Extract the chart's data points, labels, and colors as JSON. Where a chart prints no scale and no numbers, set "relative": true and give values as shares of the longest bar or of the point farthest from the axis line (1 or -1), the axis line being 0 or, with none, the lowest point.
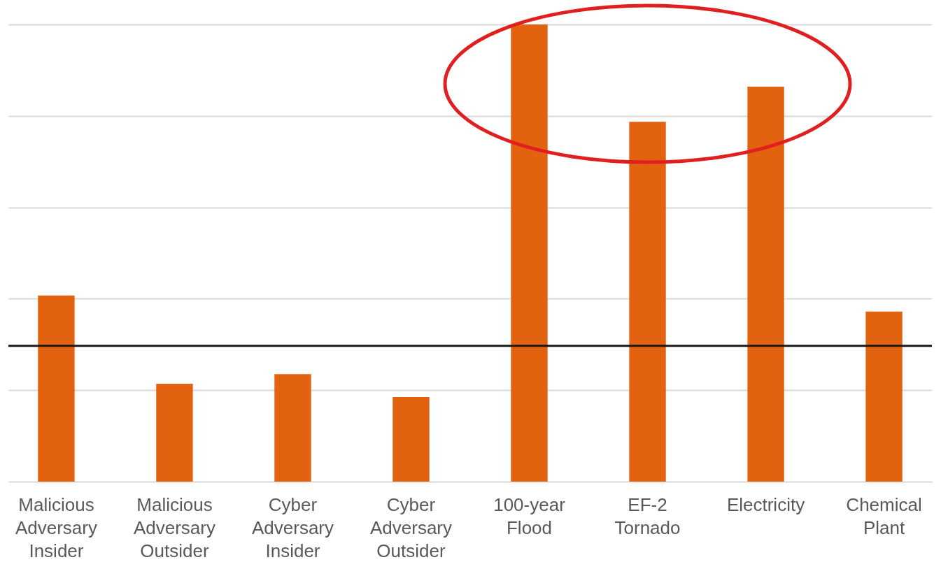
{
  "chart_data": {
    "type": "bar",
    "relative": true,
    "grid": "y",
    "tick_labels": "x",
    "categories": [
      "Malicious Adversary Insider",
      "Malicious Adversary Outsider",
      "Cyber Adversary Insider",
      "Cyber Adversary Outsider",
      "100-year Flood",
      "EF-2 Tornado",
      "Electricity",
      "Chemical Plant"
    ],
    "values": [
      0.407,
      0.214,
      0.235,
      0.185,
      1,
      0.787,
      0.864,
      0.372
    ],
    "color": "#e2620f",
    "ref_lines": [
      {
        "axis": "y",
        "value": 0.297,
        "color": "#1a1a1a"
      }
    ]
  }
}
